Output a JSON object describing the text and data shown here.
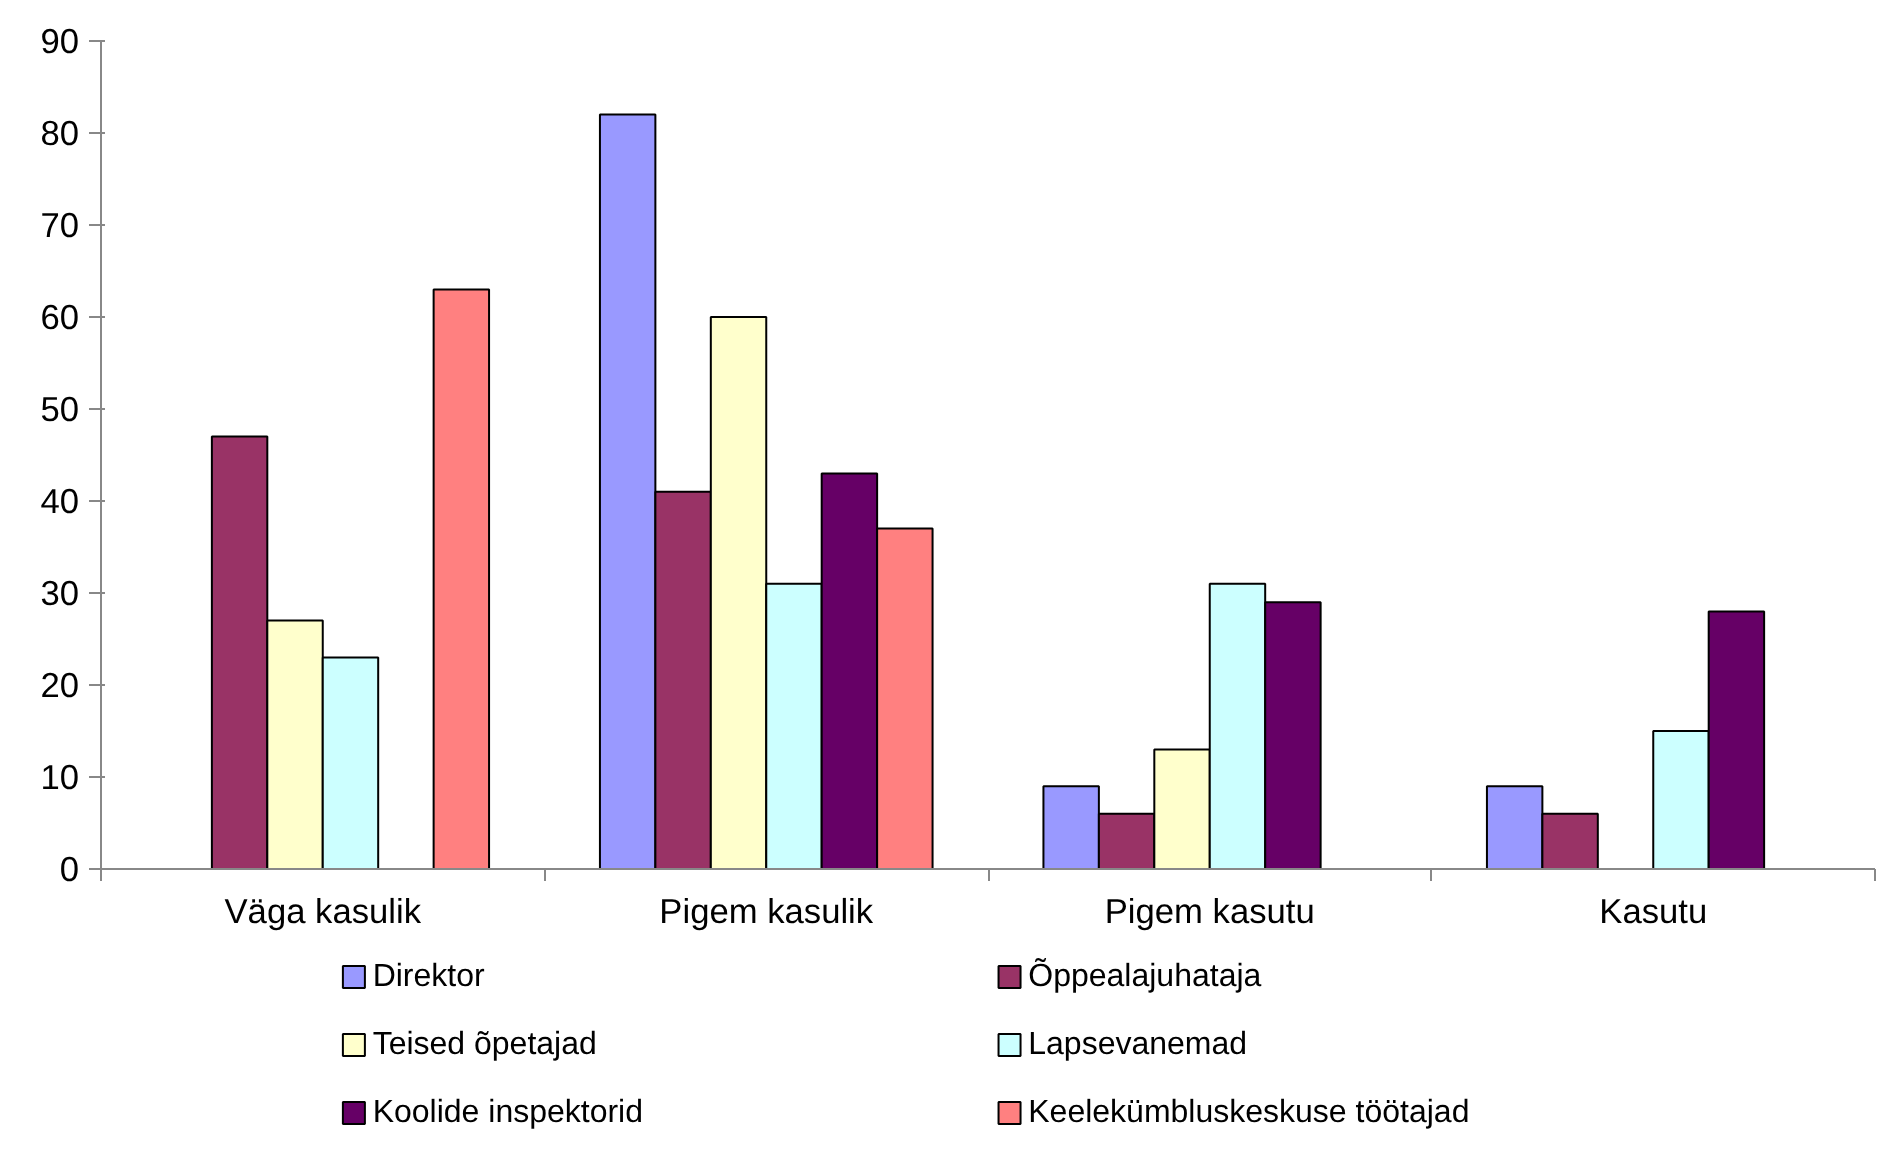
{
  "chart_data": {
    "type": "bar",
    "categories": [
      "Väga kasulik",
      "Pigem kasulik",
      "Pigem kasutu",
      "Kasutu"
    ],
    "ylim": [
      0,
      90
    ],
    "yticks": [
      0,
      10,
      20,
      30,
      40,
      50,
      60,
      70,
      80,
      90
    ],
    "grid": false,
    "legend": "bottom",
    "series": [
      {
        "name": "Direktor",
        "color": "#9999ff",
        "values": [
          null,
          82,
          9,
          9
        ]
      },
      {
        "name": "Õppealajuhataja",
        "color": "#993366",
        "values": [
          47,
          41,
          6,
          6
        ]
      },
      {
        "name": "Teised õpetajad",
        "color": "#ffffcc",
        "values": [
          27,
          60,
          13,
          null
        ]
      },
      {
        "name": "Lapsevanemad",
        "color": "#ccffff",
        "values": [
          23,
          31,
          31,
          15
        ]
      },
      {
        "name": "Koolide inspektorid",
        "color": "#660066",
        "values": [
          null,
          43,
          29,
          28
        ]
      },
      {
        "name": "Keelekümbluskeskuse töötajad",
        "color": "#ff8080",
        "values": [
          63,
          37,
          null,
          null
        ]
      }
    ]
  }
}
